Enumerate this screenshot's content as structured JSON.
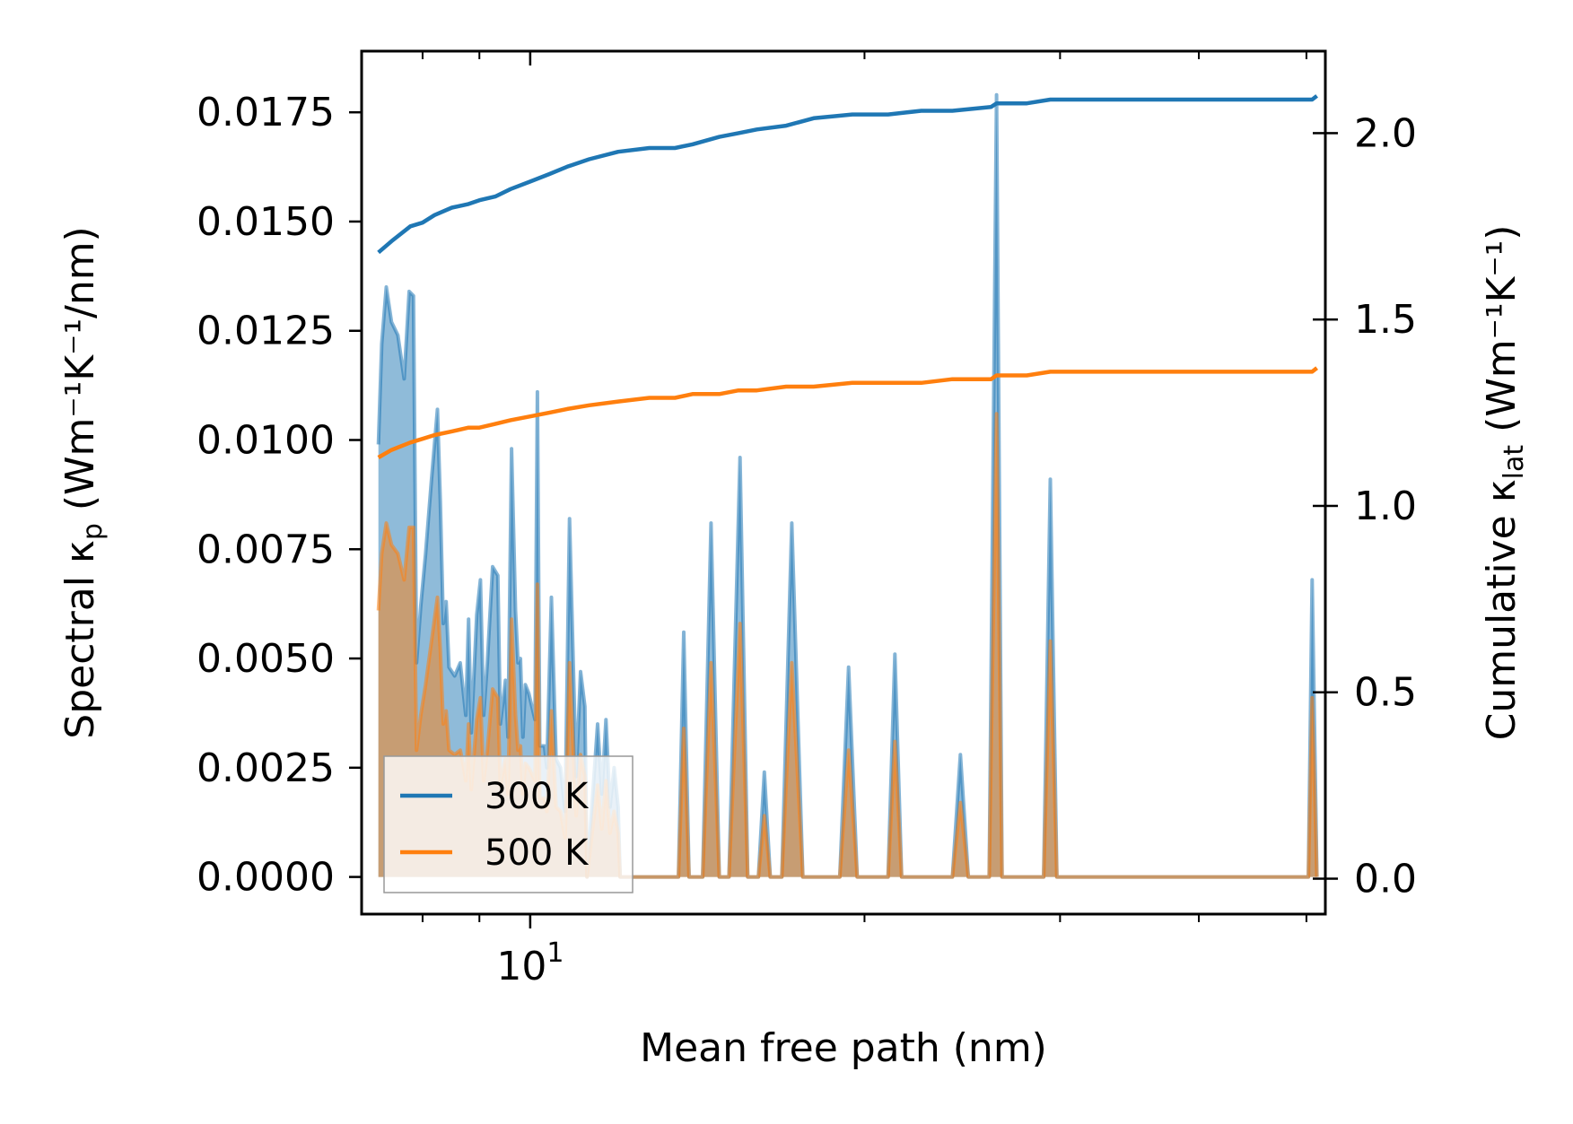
{
  "chart_data": {
    "type": "line",
    "xscale": "log",
    "xlim": [
      7.05,
      52.0
    ],
    "xlabel": "Mean free path (nm)",
    "x_tick_major": {
      "value": 10,
      "base": "10",
      "exponent": "1"
    },
    "x_minor_ticks": [
      8,
      9,
      20,
      30,
      40,
      50
    ],
    "left_axis": {
      "label_prefix": "Spectral κ",
      "label_sub": "p",
      "label_suffix": " (Wm⁻¹K⁻¹/nm)",
      "ylim": [
        -0.00085,
        0.0189
      ],
      "ticks": [
        0.0,
        0.0025,
        0.005,
        0.0075,
        0.01,
        0.0125,
        0.015,
        0.0175
      ],
      "tick_labels": [
        "0.0000",
        "0.0025",
        "0.0050",
        "0.0075",
        "0.0100",
        "0.0125",
        "0.0150",
        "0.0175"
      ]
    },
    "right_axis": {
      "label_prefix": "Cumulative κ",
      "label_sub": "lat",
      "label_suffix": " (Wm⁻¹K⁻¹)",
      "ylim": [
        -0.095,
        2.22
      ],
      "ticks": [
        0.0,
        0.5,
        1.0,
        1.5,
        2.0
      ],
      "tick_labels": [
        "0.0",
        "0.5",
        "1.0",
        "1.5",
        "2.0"
      ]
    },
    "spectral_series": [
      {
        "name": "300 K",
        "color": "#1f77b4",
        "points": [
          [
            7.3,
            0.0099
          ],
          [
            7.35,
            0.0122
          ],
          [
            7.42,
            0.0135
          ],
          [
            7.5,
            0.0127
          ],
          [
            7.6,
            0.0124
          ],
          [
            7.7,
            0.0114
          ],
          [
            7.78,
            0.0134
          ],
          [
            7.85,
            0.0133
          ],
          [
            7.9,
            0.0049
          ],
          [
            7.97,
            0.0062
          ],
          [
            8.05,
            0.0074
          ],
          [
            8.15,
            0.0091
          ],
          [
            8.25,
            0.0107
          ],
          [
            8.3,
            0.0086
          ],
          [
            8.35,
            0.0058
          ],
          [
            8.4,
            0.0063
          ],
          [
            8.45,
            0.0048
          ],
          [
            8.55,
            0.0046
          ],
          [
            8.65,
            0.0049
          ],
          [
            8.7,
            0.0043
          ],
          [
            8.75,
            0.0037
          ],
          [
            8.8,
            0.0059
          ],
          [
            8.85,
            0.0033
          ],
          [
            8.95,
            0.006
          ],
          [
            9.02,
            0.0068
          ],
          [
            9.08,
            0.0037
          ],
          [
            9.15,
            0.0049
          ],
          [
            9.25,
            0.0071
          ],
          [
            9.35,
            0.0069
          ],
          [
            9.4,
            0.0035
          ],
          [
            9.5,
            0.0045
          ],
          [
            9.55,
            0.0032
          ],
          [
            9.62,
            0.0098
          ],
          [
            9.7,
            0.0061
          ],
          [
            9.75,
            0.0049
          ],
          [
            9.8,
            0.005
          ],
          [
            9.85,
            0.0032
          ],
          [
            9.9,
            0.0044
          ],
          [
            9.97,
            0.0042
          ],
          [
            10.1,
            0.0036
          ],
          [
            10.15,
            0.0111
          ],
          [
            10.2,
            0.003
          ],
          [
            10.3,
            0.003
          ],
          [
            10.35,
            0.0025
          ],
          [
            10.45,
            0.0064
          ],
          [
            10.55,
            0.0027
          ],
          [
            10.65,
            0.0025
          ],
          [
            10.75,
            0.0015
          ],
          [
            10.85,
            0.0082
          ],
          [
            11.0,
            0.0023
          ],
          [
            11.1,
            0.0047
          ],
          [
            11.2,
            0.0039
          ],
          [
            11.25,
            0.0
          ],
          [
            11.5,
            0.0035
          ],
          [
            11.6,
            0.0019
          ],
          [
            11.7,
            0.0036
          ],
          [
            11.8,
            0.0016
          ],
          [
            11.9,
            0.0025
          ],
          [
            12.0,
            0.0016
          ],
          [
            12.05,
            0.0
          ],
          [
            12.4,
            0.0
          ],
          [
            13.0,
            0.0
          ],
          [
            13.6,
            0.0
          ],
          [
            13.75,
            0.0056
          ],
          [
            13.9,
            0.0
          ],
          [
            14.3,
            0.0
          ],
          [
            14.55,
            0.0081
          ],
          [
            14.8,
            0.0
          ],
          [
            15.1,
            0.0
          ],
          [
            15.45,
            0.0096
          ],
          [
            15.7,
            0.0
          ],
          [
            16.05,
            0.0
          ],
          [
            16.25,
            0.0024
          ],
          [
            16.45,
            0.0
          ],
          [
            16.85,
            0.0
          ],
          [
            17.2,
            0.0081
          ],
          [
            17.6,
            0.0
          ],
          [
            19.0,
            0.0
          ],
          [
            19.35,
            0.0048
          ],
          [
            19.7,
            0.0
          ],
          [
            21.0,
            0.0
          ],
          [
            21.3,
            0.0051
          ],
          [
            21.6,
            0.0
          ],
          [
            24.0,
            0.0
          ],
          [
            24.4,
            0.0028
          ],
          [
            24.8,
            0.0
          ],
          [
            25.9,
            0.0
          ],
          [
            26.3,
            0.0179
          ],
          [
            26.6,
            0.0
          ],
          [
            29.0,
            0.0
          ],
          [
            29.4,
            0.0091
          ],
          [
            29.8,
            0.0
          ],
          [
            50.2,
            0.0
          ],
          [
            50.6,
            0.0068
          ],
          [
            51.1,
            0.0
          ]
        ]
      },
      {
        "name": "500 K",
        "color": "#ff7f0e",
        "points": [
          [
            7.3,
            0.0061
          ],
          [
            7.35,
            0.0074
          ],
          [
            7.42,
            0.0081
          ],
          [
            7.5,
            0.0076
          ],
          [
            7.6,
            0.0074
          ],
          [
            7.7,
            0.0068
          ],
          [
            7.78,
            0.008
          ],
          [
            7.85,
            0.008
          ],
          [
            7.9,
            0.0029
          ],
          [
            7.97,
            0.0037
          ],
          [
            8.05,
            0.0044
          ],
          [
            8.15,
            0.0054
          ],
          [
            8.25,
            0.0064
          ],
          [
            8.3,
            0.0052
          ],
          [
            8.35,
            0.0035
          ],
          [
            8.4,
            0.0038
          ],
          [
            8.45,
            0.0029
          ],
          [
            8.55,
            0.0028
          ],
          [
            8.65,
            0.0029
          ],
          [
            8.7,
            0.0026
          ],
          [
            8.75,
            0.0022
          ],
          [
            8.8,
            0.0035
          ],
          [
            8.85,
            0.002
          ],
          [
            8.95,
            0.0036
          ],
          [
            9.02,
            0.0041
          ],
          [
            9.08,
            0.0022
          ],
          [
            9.15,
            0.0029
          ],
          [
            9.25,
            0.0043
          ],
          [
            9.35,
            0.0041
          ],
          [
            9.4,
            0.0021
          ],
          [
            9.5,
            0.0027
          ],
          [
            9.55,
            0.0019
          ],
          [
            9.62,
            0.0059
          ],
          [
            9.7,
            0.0037
          ],
          [
            9.75,
            0.0029
          ],
          [
            9.8,
            0.003
          ],
          [
            9.85,
            0.0019
          ],
          [
            9.9,
            0.0026
          ],
          [
            9.97,
            0.0025
          ],
          [
            10.1,
            0.0022
          ],
          [
            10.15,
            0.0067
          ],
          [
            10.2,
            0.0018
          ],
          [
            10.3,
            0.0018
          ],
          [
            10.35,
            0.0015
          ],
          [
            10.45,
            0.0038
          ],
          [
            10.55,
            0.0016
          ],
          [
            10.65,
            0.0015
          ],
          [
            10.75,
            0.0009
          ],
          [
            10.85,
            0.0049
          ],
          [
            11.0,
            0.0014
          ],
          [
            11.1,
            0.0028
          ],
          [
            11.2,
            0.0023
          ],
          [
            11.25,
            0.0
          ],
          [
            11.5,
            0.0021
          ],
          [
            11.6,
            0.0011
          ],
          [
            11.7,
            0.0022
          ],
          [
            11.8,
            0.001
          ],
          [
            11.9,
            0.0015
          ],
          [
            12.0,
            0.001
          ],
          [
            12.05,
            0.0
          ],
          [
            12.4,
            0.0
          ],
          [
            13.0,
            0.0
          ],
          [
            13.6,
            0.0
          ],
          [
            13.75,
            0.0034
          ],
          [
            13.9,
            0.0
          ],
          [
            14.3,
            0.0
          ],
          [
            14.55,
            0.0049
          ],
          [
            14.8,
            0.0
          ],
          [
            15.1,
            0.0
          ],
          [
            15.45,
            0.0058
          ],
          [
            15.7,
            0.0
          ],
          [
            16.05,
            0.0
          ],
          [
            16.25,
            0.0014
          ],
          [
            16.45,
            0.0
          ],
          [
            16.85,
            0.0
          ],
          [
            17.2,
            0.0049
          ],
          [
            17.6,
            0.0
          ],
          [
            19.0,
            0.0
          ],
          [
            19.35,
            0.0029
          ],
          [
            19.7,
            0.0
          ],
          [
            21.0,
            0.0
          ],
          [
            21.3,
            0.0031
          ],
          [
            21.6,
            0.0
          ],
          [
            24.0,
            0.0
          ],
          [
            24.4,
            0.0017
          ],
          [
            24.8,
            0.0
          ],
          [
            25.9,
            0.0
          ],
          [
            26.3,
            0.0106
          ],
          [
            26.6,
            0.0
          ],
          [
            29.0,
            0.0
          ],
          [
            29.4,
            0.0054
          ],
          [
            29.8,
            0.0
          ],
          [
            50.2,
            0.0
          ],
          [
            50.6,
            0.0041
          ],
          [
            51.1,
            0.0
          ]
        ]
      }
    ],
    "cumulative_series": [
      {
        "name": "300 K",
        "color": "#1f77b4",
        "points": [
          [
            7.3,
            1.68
          ],
          [
            7.5,
            1.71
          ],
          [
            7.8,
            1.75
          ],
          [
            8.0,
            1.76
          ],
          [
            8.2,
            1.78
          ],
          [
            8.5,
            1.8
          ],
          [
            8.8,
            1.81
          ],
          [
            9.0,
            1.82
          ],
          [
            9.3,
            1.83
          ],
          [
            9.6,
            1.85
          ],
          [
            10.0,
            1.87
          ],
          [
            10.4,
            1.89
          ],
          [
            10.8,
            1.91
          ],
          [
            11.3,
            1.93
          ],
          [
            12.0,
            1.95
          ],
          [
            12.8,
            1.96
          ],
          [
            13.5,
            1.96
          ],
          [
            14.0,
            1.97
          ],
          [
            14.8,
            1.99
          ],
          [
            15.4,
            2.0
          ],
          [
            16.0,
            2.01
          ],
          [
            17.0,
            2.02
          ],
          [
            18.0,
            2.04
          ],
          [
            19.5,
            2.05
          ],
          [
            21.0,
            2.05
          ],
          [
            22.5,
            2.06
          ],
          [
            24.0,
            2.06
          ],
          [
            26.0,
            2.07
          ],
          [
            26.3,
            2.08
          ],
          [
            28.0,
            2.08
          ],
          [
            29.4,
            2.09
          ],
          [
            35.0,
            2.09
          ],
          [
            45.0,
            2.09
          ],
          [
            50.6,
            2.09
          ],
          [
            51.1,
            2.1
          ]
        ]
      },
      {
        "name": "500 K",
        "color": "#ff7f0e",
        "points": [
          [
            7.3,
            1.13
          ],
          [
            7.5,
            1.15
          ],
          [
            7.8,
            1.17
          ],
          [
            8.0,
            1.18
          ],
          [
            8.2,
            1.19
          ],
          [
            8.5,
            1.2
          ],
          [
            8.8,
            1.21
          ],
          [
            9.0,
            1.21
          ],
          [
            9.3,
            1.22
          ],
          [
            9.6,
            1.23
          ],
          [
            10.0,
            1.24
          ],
          [
            10.4,
            1.25
          ],
          [
            10.8,
            1.26
          ],
          [
            11.3,
            1.27
          ],
          [
            12.0,
            1.28
          ],
          [
            12.8,
            1.29
          ],
          [
            13.5,
            1.29
          ],
          [
            14.0,
            1.3
          ],
          [
            14.8,
            1.3
          ],
          [
            15.4,
            1.31
          ],
          [
            16.0,
            1.31
          ],
          [
            17.0,
            1.32
          ],
          [
            18.0,
            1.32
          ],
          [
            19.5,
            1.33
          ],
          [
            21.0,
            1.33
          ],
          [
            22.5,
            1.33
          ],
          [
            24.0,
            1.34
          ],
          [
            26.0,
            1.34
          ],
          [
            26.3,
            1.35
          ],
          [
            28.0,
            1.35
          ],
          [
            29.4,
            1.36
          ],
          [
            35.0,
            1.36
          ],
          [
            45.0,
            1.36
          ],
          [
            50.6,
            1.36
          ],
          [
            51.1,
            1.37
          ]
        ]
      }
    ],
    "legend": {
      "position": "lower-left",
      "entries": [
        {
          "label": "300 K",
          "color": "#1f77b4"
        },
        {
          "label": "500 K",
          "color": "#ff7f0e"
        }
      ]
    }
  }
}
